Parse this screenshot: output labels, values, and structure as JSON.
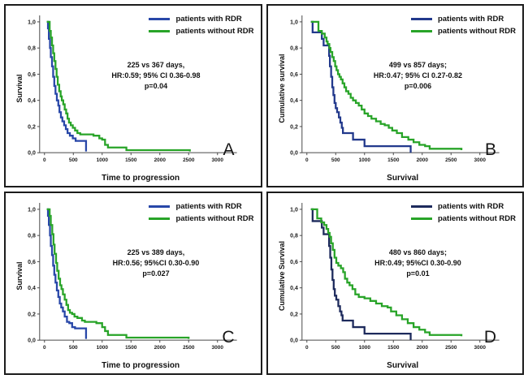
{
  "figure": {
    "background": "#ffffff",
    "panel_border_color": "#1c1c1c"
  },
  "axis": {
    "line_color": "#4a4a4a",
    "tick_label_color": "#1a1a1a"
  },
  "legend": {
    "with_label": "patients with RDR",
    "without_label": "patients without RDR",
    "with_color": "#2847A8",
    "without_color": "#28A428"
  },
  "chart_data": [
    {
      "type": "line",
      "panel_label": "A",
      "xlabel": "Time to progression",
      "ylabel": "Survival",
      "xlim": [
        0,
        3000
      ],
      "ylim": [
        0,
        1.0
      ],
      "grid": false,
      "legend_position": "top-right",
      "xticks": [
        "0",
        "500",
        "1000",
        "1500",
        "2000",
        "2500",
        "3000"
      ],
      "yticks": [
        "0,0",
        "0,2",
        "0,4",
        "0,6",
        "0,8",
        "1,0"
      ],
      "annotation": [
        "225 vs 367 days,",
        "HR:0.59; 95% CI 0.36-0.98",
        "p=0.04"
      ],
      "series": [
        {
          "name": "patients with RDR",
          "key": "with-rdr",
          "color": "#2847A8",
          "step": [
            [
              40,
              1.0
            ],
            [
              60,
              0.95
            ],
            [
              75,
              0.87
            ],
            [
              95,
              0.8
            ],
            [
              110,
              0.73
            ],
            [
              130,
              0.66
            ],
            [
              150,
              0.58
            ],
            [
              170,
              0.51
            ],
            [
              190,
              0.45
            ],
            [
              215,
              0.4
            ],
            [
              240,
              0.36
            ],
            [
              260,
              0.31
            ],
            [
              285,
              0.27
            ],
            [
              310,
              0.24
            ],
            [
              340,
              0.21
            ],
            [
              370,
              0.18
            ],
            [
              400,
              0.15
            ],
            [
              440,
              0.13
            ],
            [
              490,
              0.11
            ],
            [
              540,
              0.09
            ],
            [
              700,
              0.09
            ],
            [
              720,
              0.01
            ]
          ]
        },
        {
          "name": "patients without RDR",
          "key": "without-rdr",
          "color": "#28A428",
          "step": [
            [
              40,
              1.0
            ],
            [
              90,
              0.93
            ],
            [
              110,
              0.88
            ],
            [
              130,
              0.82
            ],
            [
              150,
              0.76
            ],
            [
              170,
              0.7
            ],
            [
              190,
              0.64
            ],
            [
              210,
              0.58
            ],
            [
              230,
              0.52
            ],
            [
              255,
              0.47
            ],
            [
              280,
              0.43
            ],
            [
              300,
              0.4
            ],
            [
              325,
              0.37
            ],
            [
              350,
              0.33
            ],
            [
              375,
              0.3
            ],
            [
              400,
              0.26
            ],
            [
              425,
              0.23
            ],
            [
              455,
              0.21
            ],
            [
              490,
              0.19
            ],
            [
              530,
              0.17
            ],
            [
              570,
              0.15
            ],
            [
              620,
              0.14
            ],
            [
              850,
              0.13
            ],
            [
              950,
              0.11
            ],
            [
              1000,
              0.1
            ],
            [
              1050,
              0.06
            ],
            [
              1100,
              0.04
            ],
            [
              1420,
              0.02
            ],
            [
              2520,
              0.01
            ]
          ]
        }
      ]
    },
    {
      "type": "line",
      "panel_label": "B",
      "xlabel": "Survival",
      "ylabel": "Cumulative survival",
      "xlim": [
        0,
        3000
      ],
      "ylim": [
        0,
        1.0
      ],
      "grid": false,
      "legend_position": "top-right",
      "xticks": [
        "0",
        "500",
        "1000",
        "1500",
        "2000",
        "2500",
        "3000"
      ],
      "yticks": [
        "0,0",
        "0,2",
        "0,4",
        "0,6",
        "0,8",
        "1,0"
      ],
      "annotation": [
        "499 vs 857 days;",
        "HR:0.47; 95% CI 0.27-0.82",
        "p=0.006"
      ],
      "series": [
        {
          "name": "patients with RDR",
          "key": "with-rdr",
          "color": "#22398C",
          "step": [
            [
              70,
              1.0
            ],
            [
              100,
              0.92
            ],
            [
              240,
              0.92
            ],
            [
              260,
              0.87
            ],
            [
              290,
              0.82
            ],
            [
              370,
              0.82
            ],
            [
              385,
              0.74
            ],
            [
              400,
              0.66
            ],
            [
              420,
              0.58
            ],
            [
              440,
              0.5
            ],
            [
              460,
              0.44
            ],
            [
              480,
              0.38
            ],
            [
              500,
              0.34
            ],
            [
              525,
              0.31
            ],
            [
              555,
              0.27
            ],
            [
              580,
              0.23
            ],
            [
              605,
              0.19
            ],
            [
              625,
              0.15
            ],
            [
              780,
              0.15
            ],
            [
              800,
              0.1
            ],
            [
              950,
              0.1
            ],
            [
              1000,
              0.05
            ],
            [
              1790,
              0.05
            ],
            [
              1800,
              0.0
            ]
          ]
        },
        {
          "name": "patients without RDR",
          "key": "without-rdr",
          "color": "#28A428",
          "step": [
            [
              70,
              1.0
            ],
            [
              180,
              1.0
            ],
            [
              200,
              0.93
            ],
            [
              260,
              0.91
            ],
            [
              310,
              0.88
            ],
            [
              340,
              0.85
            ],
            [
              360,
              0.83
            ],
            [
              390,
              0.8
            ],
            [
              410,
              0.77
            ],
            [
              440,
              0.73
            ],
            [
              465,
              0.7
            ],
            [
              490,
              0.66
            ],
            [
              515,
              0.63
            ],
            [
              540,
              0.6
            ],
            [
              565,
              0.58
            ],
            [
              590,
              0.56
            ],
            [
              620,
              0.53
            ],
            [
              650,
              0.5
            ],
            [
              680,
              0.47
            ],
            [
              720,
              0.45
            ],
            [
              760,
              0.42
            ],
            [
              800,
              0.4
            ],
            [
              850,
              0.38
            ],
            [
              900,
              0.36
            ],
            [
              950,
              0.33
            ],
            [
              1000,
              0.3
            ],
            [
              1060,
              0.28
            ],
            [
              1120,
              0.26
            ],
            [
              1200,
              0.24
            ],
            [
              1280,
              0.22
            ],
            [
              1350,
              0.21
            ],
            [
              1420,
              0.19
            ],
            [
              1480,
              0.17
            ],
            [
              1560,
              0.15
            ],
            [
              1650,
              0.12
            ],
            [
              1760,
              0.1
            ],
            [
              1850,
              0.08
            ],
            [
              1950,
              0.06
            ],
            [
              2050,
              0.05
            ],
            [
              2130,
              0.03
            ],
            [
              2680,
              0.02
            ]
          ]
        }
      ]
    },
    {
      "type": "line",
      "panel_label": "C",
      "xlabel": "Time to progression",
      "ylabel": "Survival",
      "xlim": [
        0,
        3000
      ],
      "ylim": [
        0,
        1.0
      ],
      "grid": false,
      "legend_position": "top-right",
      "xticks": [
        "0",
        "500",
        "1000",
        "1500",
        "2000",
        "2500",
        "3000"
      ],
      "yticks": [
        "0,0",
        "0,2",
        "0,4",
        "0,6",
        "0,8",
        "1,0"
      ],
      "annotation": [
        "225 vs 389 days,",
        "HR:0.56; 95%CI 0.30-0.90",
        "p=0.027"
      ],
      "series": [
        {
          "name": "patients with RDR",
          "key": "with-rdr",
          "color": "#2847A8",
          "step": [
            [
              40,
              1.0
            ],
            [
              60,
              0.95
            ],
            [
              75,
              0.88
            ],
            [
              95,
              0.8
            ],
            [
              110,
              0.72
            ],
            [
              130,
              0.65
            ],
            [
              150,
              0.57
            ],
            [
              170,
              0.5
            ],
            [
              190,
              0.44
            ],
            [
              215,
              0.38
            ],
            [
              240,
              0.33
            ],
            [
              265,
              0.28
            ],
            [
              290,
              0.25
            ],
            [
              320,
              0.22
            ],
            [
              350,
              0.18
            ],
            [
              390,
              0.14
            ],
            [
              430,
              0.13
            ],
            [
              480,
              0.1
            ],
            [
              530,
              0.09
            ],
            [
              700,
              0.09
            ],
            [
              720,
              0.01
            ]
          ]
        },
        {
          "name": "patients without RDR",
          "key": "without-rdr",
          "color": "#28A428",
          "step": [
            [
              40,
              1.0
            ],
            [
              90,
              0.95
            ],
            [
              110,
              0.88
            ],
            [
              135,
              0.81
            ],
            [
              155,
              0.73
            ],
            [
              175,
              0.66
            ],
            [
              200,
              0.59
            ],
            [
              220,
              0.53
            ],
            [
              245,
              0.47
            ],
            [
              270,
              0.42
            ],
            [
              295,
              0.39
            ],
            [
              320,
              0.35
            ],
            [
              350,
              0.31
            ],
            [
              380,
              0.27
            ],
            [
              410,
              0.23
            ],
            [
              440,
              0.21
            ],
            [
              480,
              0.2
            ],
            [
              520,
              0.18
            ],
            [
              570,
              0.17
            ],
            [
              650,
              0.15
            ],
            [
              700,
              0.14
            ],
            [
              900,
              0.13
            ],
            [
              1000,
              0.1
            ],
            [
              1050,
              0.07
            ],
            [
              1100,
              0.04
            ],
            [
              1420,
              0.02
            ],
            [
              2500,
              0.01
            ]
          ]
        }
      ]
    },
    {
      "type": "line",
      "panel_label": "D",
      "xlabel": "Survival",
      "ylabel": "Cumulative Survival",
      "xlim": [
        0,
        3000
      ],
      "ylim": [
        0,
        1.0
      ],
      "grid": false,
      "legend_position": "top-right",
      "xticks": [
        "0",
        "500",
        "1000",
        "1500",
        "2000",
        "2500",
        "3000"
      ],
      "yticks": [
        "0,0",
        "0,2",
        "0,4",
        "0,6",
        "0,8",
        "1,0"
      ],
      "annotation": [
        "480 vs 860 days;",
        "HR:0.49; 95%CI 0.30-0.90",
        "p=0.01"
      ],
      "series": [
        {
          "name": "patients with RDR",
          "key": "with-rdr",
          "color": "#1D2A5C",
          "step": [
            [
              70,
              1.0
            ],
            [
              100,
              0.91
            ],
            [
              240,
              0.91
            ],
            [
              260,
              0.86
            ],
            [
              290,
              0.81
            ],
            [
              370,
              0.81
            ],
            [
              385,
              0.72
            ],
            [
              405,
              0.63
            ],
            [
              425,
              0.54
            ],
            [
              445,
              0.46
            ],
            [
              465,
              0.39
            ],
            [
              485,
              0.34
            ],
            [
              510,
              0.31
            ],
            [
              545,
              0.26
            ],
            [
              575,
              0.22
            ],
            [
              600,
              0.19
            ],
            [
              620,
              0.15
            ],
            [
              780,
              0.15
            ],
            [
              800,
              0.1
            ],
            [
              950,
              0.1
            ],
            [
              1000,
              0.05
            ],
            [
              1790,
              0.05
            ],
            [
              1800,
              0.0
            ]
          ]
        },
        {
          "name": "patients without RDR",
          "key": "without-rdr",
          "color": "#28A428",
          "step": [
            [
              70,
              1.0
            ],
            [
              160,
              1.0
            ],
            [
              180,
              0.93
            ],
            [
              250,
              0.9
            ],
            [
              300,
              0.88
            ],
            [
              340,
              0.85
            ],
            [
              370,
              0.82
            ],
            [
              395,
              0.79
            ],
            [
              420,
              0.74
            ],
            [
              450,
              0.69
            ],
            [
              480,
              0.63
            ],
            [
              510,
              0.59
            ],
            [
              545,
              0.57
            ],
            [
              590,
              0.55
            ],
            [
              630,
              0.52
            ],
            [
              660,
              0.47
            ],
            [
              700,
              0.44
            ],
            [
              740,
              0.42
            ],
            [
              790,
              0.39
            ],
            [
              840,
              0.35
            ],
            [
              900,
              0.33
            ],
            [
              1000,
              0.32
            ],
            [
              1100,
              0.3
            ],
            [
              1200,
              0.28
            ],
            [
              1300,
              0.26
            ],
            [
              1400,
              0.25
            ],
            [
              1460,
              0.22
            ],
            [
              1550,
              0.19
            ],
            [
              1650,
              0.16
            ],
            [
              1750,
              0.13
            ],
            [
              1850,
              0.1
            ],
            [
              1950,
              0.08
            ],
            [
              2050,
              0.06
            ],
            [
              2130,
              0.04
            ],
            [
              2680,
              0.03
            ]
          ]
        }
      ]
    }
  ]
}
